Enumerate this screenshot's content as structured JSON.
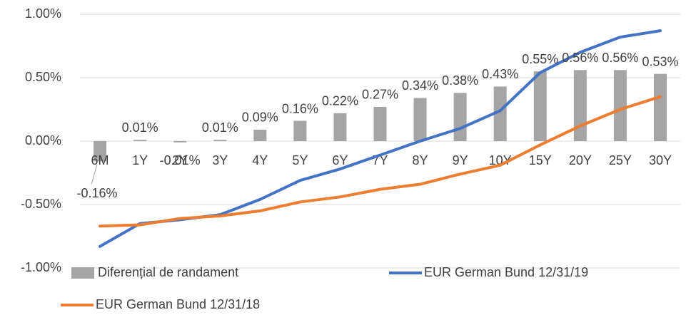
{
  "chart_data": {
    "type": "bar",
    "categories": [
      "6M",
      "1Y",
      "2Y",
      "3Y",
      "4Y",
      "5Y",
      "6Y",
      "7Y",
      "8Y",
      "9Y",
      "10Y",
      "15Y",
      "20Y",
      "25Y",
      "30Y"
    ],
    "series": [
      {
        "name": "Diferențial de randament",
        "type": "bar",
        "color": "#a5a5a5",
        "values": [
          -0.16,
          0.01,
          -0.01,
          0.01,
          0.09,
          0.16,
          0.22,
          0.27,
          0.34,
          0.38,
          0.43,
          0.55,
          0.56,
          0.56,
          0.53
        ],
        "value_labels": [
          "-0.16%",
          "0.01%",
          "-0.01%",
          "0.01%",
          "0.09%",
          "0.16%",
          "0.22%",
          "0.27%",
          "0.34%",
          "0.38%",
          "0.43%",
          "0.55%",
          "0.56%",
          "0.56%",
          "0.53%"
        ]
      },
      {
        "name": "EUR German Bund 12/31/19",
        "type": "line",
        "color": "#4472c4",
        "values": [
          -0.83,
          -0.65,
          -0.62,
          -0.58,
          -0.46,
          -0.31,
          -0.22,
          -0.11,
          0.0,
          0.1,
          0.24,
          0.54,
          0.7,
          0.82,
          0.87
        ]
      },
      {
        "name": "EUR German Bund 12/31/18",
        "type": "line",
        "color": "#ed7d31",
        "values": [
          -0.67,
          -0.66,
          -0.61,
          -0.59,
          -0.55,
          -0.48,
          -0.44,
          -0.38,
          -0.34,
          -0.26,
          -0.19,
          -0.03,
          0.12,
          0.25,
          0.35
        ]
      }
    ],
    "ylim": [
      -1.0,
      1.0
    ],
    "yticks": [
      {
        "value": -1.0,
        "label": "-1.00%"
      },
      {
        "value": -0.5,
        "label": "-0.50%"
      },
      {
        "value": 0.0,
        "label": "0.00%"
      },
      {
        "value": 0.5,
        "label": "0.50%"
      },
      {
        "value": 1.0,
        "label": "1.00%"
      }
    ],
    "grid": true,
    "legend": "bottom"
  }
}
